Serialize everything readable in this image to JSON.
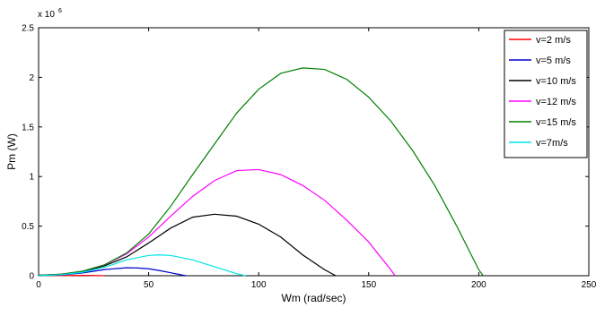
{
  "chart_data": {
    "type": "line",
    "title": "",
    "xlabel": "Wm (rad/sec)",
    "ylabel": "Pm (W)",
    "xlim": [
      0,
      250
    ],
    "ylim": [
      0,
      2500000
    ],
    "x_ticks": [
      0,
      50,
      100,
      150,
      200,
      250
    ],
    "x_tick_labels": [
      "0",
      "50",
      "100",
      "150",
      "200",
      "250"
    ],
    "y_ticks": [
      0,
      500000,
      1000000,
      1500000,
      2000000,
      2500000
    ],
    "y_tick_labels": [
      "0",
      "0.5",
      "1",
      "1.5",
      "2",
      "2.5"
    ],
    "y_exponent_label": "x 10",
    "y_exponent_power": "6",
    "grid": false,
    "legend_position": "top-right",
    "series": [
      {
        "name": "v=2 m/s",
        "color": "#ff0000",
        "x": [
          0,
          5,
          10,
          15,
          20,
          25,
          30
        ],
        "y": [
          0,
          400,
          1200,
          2500,
          3500,
          2500,
          0
        ]
      },
      {
        "name": "v=5 m/s",
        "color": "#0000cc",
        "x": [
          0,
          10,
          20,
          30,
          40,
          45,
          50,
          55,
          60,
          65,
          67
        ],
        "y": [
          0,
          8000,
          28000,
          62000,
          80000,
          78000,
          70000,
          52000,
          30000,
          8000,
          0
        ]
      },
      {
        "name": "v=10 m/s",
        "color": "#000000",
        "x": [
          0,
          10,
          20,
          30,
          40,
          50,
          60,
          70,
          80,
          90,
          100,
          110,
          120,
          130,
          135
        ],
        "y": [
          5000,
          15000,
          40000,
          100000,
          190000,
          330000,
          480000,
          590000,
          620000,
          600000,
          520000,
          390000,
          210000,
          60000,
          0
        ]
      },
      {
        "name": "v=12 m/s",
        "color": "#ff00ff",
        "x": [
          0,
          10,
          20,
          30,
          40,
          50,
          60,
          70,
          80,
          90,
          100,
          110,
          120,
          130,
          140,
          150,
          160,
          162
        ],
        "y": [
          5000,
          15000,
          45000,
          110000,
          220000,
          390000,
          600000,
          800000,
          960000,
          1060000,
          1070000,
          1020000,
          910000,
          760000,
          560000,
          340000,
          60000,
          0
        ]
      },
      {
        "name": "v=15 m/s",
        "color": "#008000",
        "x": [
          0,
          10,
          20,
          30,
          40,
          50,
          60,
          70,
          80,
          90,
          100,
          110,
          120,
          130,
          140,
          150,
          160,
          170,
          180,
          190,
          200,
          202
        ],
        "y": [
          5000,
          15000,
          45000,
          110000,
          230000,
          420000,
          700000,
          1020000,
          1330000,
          1640000,
          1880000,
          2040000,
          2095000,
          2080000,
          1980000,
          1800000,
          1560000,
          1260000,
          910000,
          500000,
          60000,
          0
        ]
      },
      {
        "name": "v=7m/s",
        "color": "#00e5e5",
        "x": [
          0,
          10,
          20,
          30,
          40,
          50,
          55,
          60,
          70,
          80,
          90,
          94
        ],
        "y": [
          0,
          10000,
          35000,
          85000,
          160000,
          205000,
          210000,
          205000,
          160000,
          90000,
          20000,
          0
        ]
      }
    ]
  }
}
